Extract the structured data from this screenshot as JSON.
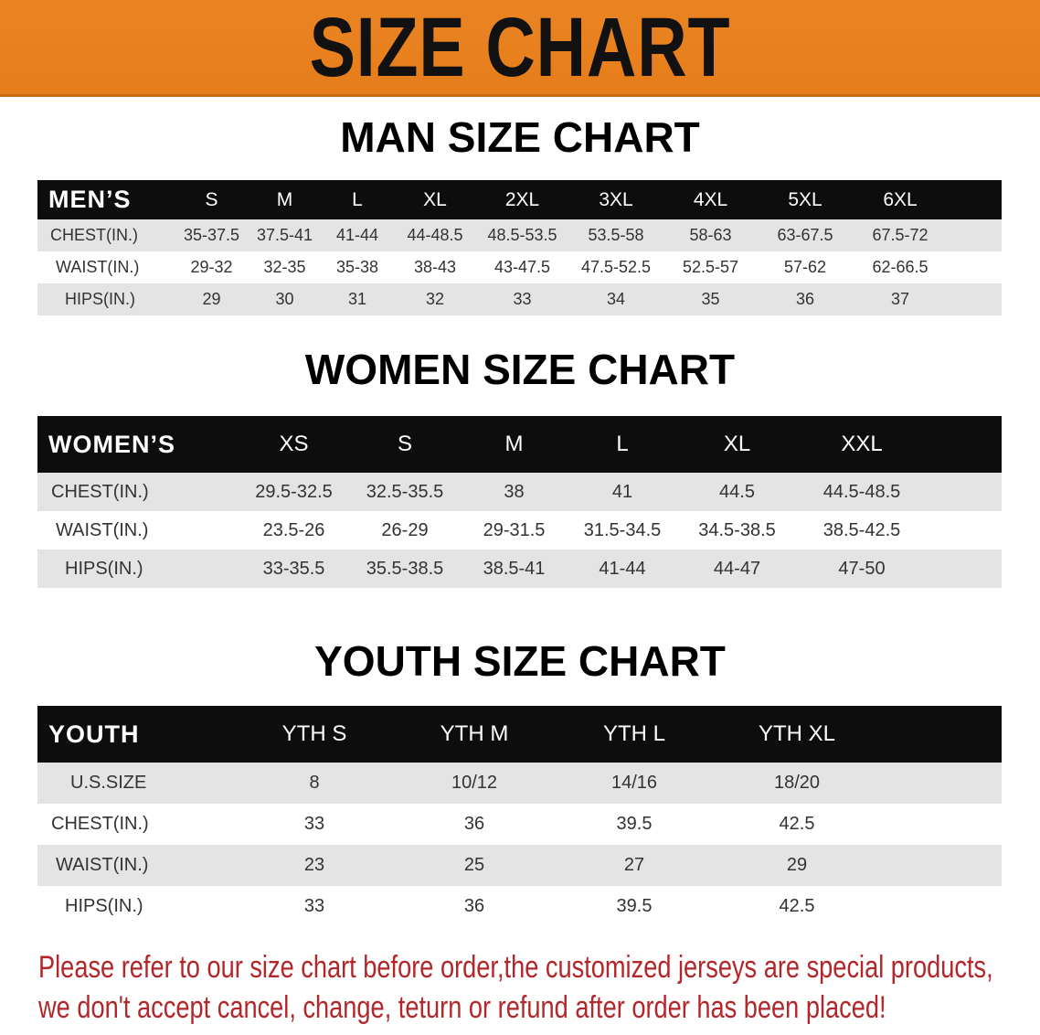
{
  "banner": {
    "title": "SIZE CHART",
    "color": "#e8801f"
  },
  "men": {
    "title": "MAN SIZE CHART",
    "header": [
      "MEN’S",
      "S",
      "M",
      "L",
      "XL",
      "2XL",
      "3XL",
      "4XL",
      "5XL",
      "6XL"
    ],
    "rows": [
      [
        "CHEST(IN.)",
        "35-37.5",
        "37.5-41",
        "41-44",
        "44-48.5",
        "48.5-53.5",
        "53.5-58",
        "58-63",
        "63-67.5",
        "67.5-72"
      ],
      [
        "WAIST(IN.)",
        "29-32",
        "32-35",
        "35-38",
        "38-43",
        "43-47.5",
        "47.5-52.5",
        "52.5-57",
        "57-62",
        "62-66.5"
      ],
      [
        "HIPS(IN.)",
        "29",
        "30",
        "31",
        "32",
        "33",
        "34",
        "35",
        "36",
        "37"
      ]
    ]
  },
  "women": {
    "title": "WOMEN SIZE CHART",
    "header": [
      "WOMEN’S",
      "XS",
      "S",
      "M",
      "L",
      "XL",
      "XXL"
    ],
    "rows": [
      [
        "CHEST(IN.)",
        "29.5-32.5",
        "32.5-35.5",
        "38",
        "41",
        "44.5",
        "44.5-48.5"
      ],
      [
        "WAIST(IN.)",
        "23.5-26",
        "26-29",
        "29-31.5",
        "31.5-34.5",
        "34.5-38.5",
        "38.5-42.5"
      ],
      [
        "HIPS(IN.)",
        "33-35.5",
        "35.5-38.5",
        "38.5-41",
        "41-44",
        "44-47",
        "47-50"
      ]
    ]
  },
  "youth": {
    "title": "YOUTH SIZE CHART",
    "header": [
      "YOUTH",
      "YTH S",
      "YTH M",
      "YTH L",
      "YTH XL"
    ],
    "rows": [
      [
        "U.S.SIZE",
        "8",
        "10/12",
        "14/16",
        "18/20"
      ],
      [
        "CHEST(IN.)",
        "33",
        "36",
        "39.5",
        "42.5"
      ],
      [
        "WAIST(IN.)",
        "23",
        "25",
        "27",
        "29"
      ],
      [
        "HIPS(IN.)",
        "33",
        "36",
        "39.5",
        "42.5"
      ]
    ]
  },
  "footer": {
    "line1": "Please refer to our size chart before order,the customized jerseys are special products,",
    "line2": "we don't accept cancel, change, teturn or refund after order has been placed!",
    "color": "#b3262a"
  }
}
